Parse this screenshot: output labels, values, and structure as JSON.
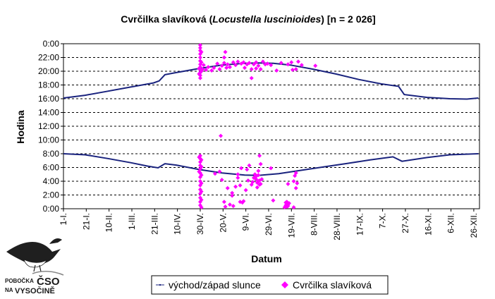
{
  "chart_data": {
    "type": "scatter",
    "title_prefix": "Cvrčilka slavíková (",
    "title_species": "Locustella luscinioides",
    "title_suffix": ") [n = 2 026]",
    "xlabel": "Datum",
    "ylabel": "Hodina",
    "ylim": [
      0,
      24
    ],
    "y_ticks": [
      "0:00",
      "2:00",
      "4:00",
      "6:00",
      "8:00",
      "10:00",
      "12:00",
      "14:00",
      "16:00",
      "18:00",
      "20:00",
      "22:00",
      "0:00"
    ],
    "x_ticks": [
      "1-I.",
      "21-I.",
      "10-II.",
      "1-III.",
      "21-III.",
      "10-IV.",
      "30-IV.",
      "20-V.",
      "9-VI.",
      "29-VI.",
      "19-VII.",
      "8-VIII.",
      "28-VIII.",
      "17-IX.",
      "7-X.",
      "27-X.",
      "16-XI.",
      "6-XII.",
      "26-XII."
    ],
    "grid": true,
    "legend_position": "bottom",
    "series": [
      {
        "name": "východ/západ slunce",
        "color": "#1a237e",
        "sunrise": [
          [
            1,
            8.0
          ],
          [
            20,
            7.85
          ],
          [
            40,
            7.3
          ],
          [
            60,
            6.7
          ],
          [
            75,
            6.2
          ],
          [
            84,
            5.95
          ],
          [
            90,
            6.55
          ],
          [
            100,
            6.35
          ],
          [
            120,
            5.7
          ],
          [
            140,
            5.2
          ],
          [
            160,
            4.9
          ],
          [
            172,
            4.85
          ],
          [
            190,
            5.1
          ],
          [
            210,
            5.6
          ],
          [
            230,
            6.1
          ],
          [
            250,
            6.6
          ],
          [
            270,
            7.1
          ],
          [
            290,
            7.55
          ],
          [
            298,
            6.9
          ],
          [
            320,
            7.45
          ],
          [
            340,
            7.85
          ],
          [
            365,
            8.0
          ]
        ],
        "sunset": [
          [
            1,
            16.1
          ],
          [
            20,
            16.5
          ],
          [
            40,
            17.1
          ],
          [
            60,
            17.7
          ],
          [
            80,
            18.3
          ],
          [
            85,
            18.6
          ],
          [
            90,
            19.5
          ],
          [
            100,
            19.8
          ],
          [
            120,
            20.4
          ],
          [
            140,
            20.9
          ],
          [
            160,
            21.15
          ],
          [
            172,
            21.2
          ],
          [
            185,
            21.15
          ],
          [
            200,
            20.9
          ],
          [
            220,
            20.3
          ],
          [
            240,
            19.6
          ],
          [
            260,
            18.8
          ],
          [
            280,
            18.15
          ],
          [
            295,
            17.8
          ],
          [
            300,
            16.6
          ],
          [
            320,
            16.2
          ],
          [
            340,
            16.0
          ],
          [
            355,
            15.95
          ],
          [
            365,
            16.1
          ]
        ]
      },
      {
        "name": "Cvrčilka slavíková",
        "color": "#ff00ff",
        "points": [
          [
            121,
            0.5
          ],
          [
            121,
            1.0
          ],
          [
            121,
            1.6
          ],
          [
            121,
            2.2
          ],
          [
            121,
            2.8
          ],
          [
            121,
            3.4
          ],
          [
            121,
            4.0
          ],
          [
            121,
            4.6
          ],
          [
            121,
            5.2
          ],
          [
            121,
            5.8
          ],
          [
            121,
            6.3
          ],
          [
            121,
            6.8
          ],
          [
            121,
            7.3
          ],
          [
            121,
            7.7
          ],
          [
            122,
            0.2
          ],
          [
            122,
            1.3
          ],
          [
            122,
            2.5
          ],
          [
            122,
            3.7
          ],
          [
            122,
            4.9
          ],
          [
            122,
            6.1
          ],
          [
            122,
            7.1
          ],
          [
            120,
            5.4
          ],
          [
            120,
            7.5
          ],
          [
            121,
            19.0
          ],
          [
            121,
            19.4
          ],
          [
            121,
            19.8
          ],
          [
            121,
            20.2
          ],
          [
            121,
            20.6
          ],
          [
            121,
            21.0
          ],
          [
            121,
            21.5
          ],
          [
            121,
            22.0
          ],
          [
            121,
            22.5
          ],
          [
            121,
            23.0
          ],
          [
            121,
            23.4
          ],
          [
            121,
            23.8
          ],
          [
            122,
            20.0
          ],
          [
            122,
            21.3
          ],
          [
            122,
            22.8
          ],
          [
            120,
            20.4
          ],
          [
            120,
            19.6
          ],
          [
            123,
            20.3
          ],
          [
            124,
            20.9
          ],
          [
            126,
            20.2
          ],
          [
            128,
            20.6
          ],
          [
            131,
            20.1
          ],
          [
            133,
            20.5
          ],
          [
            136,
            21.1
          ],
          [
            138,
            20.3
          ],
          [
            140,
            20.8
          ],
          [
            142,
            21.2
          ],
          [
            142,
            22.0
          ],
          [
            143,
            22.8
          ],
          [
            144,
            20.5
          ],
          [
            145,
            21.0
          ],
          [
            147,
            20.6
          ],
          [
            150,
            21.3
          ],
          [
            152,
            20.9
          ],
          [
            154,
            21.4
          ],
          [
            157,
            21.1
          ],
          [
            159,
            21.3
          ],
          [
            160,
            20.5
          ],
          [
            162,
            21.0
          ],
          [
            164,
            21.2
          ],
          [
            166,
            19.0
          ],
          [
            166,
            20.3
          ],
          [
            168,
            21.0
          ],
          [
            170,
            21.3
          ],
          [
            170,
            20.4
          ],
          [
            172,
            20.8
          ],
          [
            174,
            20.3
          ],
          [
            176,
            21.4
          ],
          [
            178,
            21.0
          ],
          [
            180,
            21.1
          ],
          [
            183,
            20.9
          ],
          [
            188,
            20.1
          ],
          [
            192,
            21.2
          ],
          [
            198,
            21.0
          ],
          [
            201,
            21.3
          ],
          [
            202,
            20.2
          ],
          [
            205,
            20.3
          ],
          [
            207,
            21.4
          ],
          [
            210,
            20.9
          ],
          [
            222,
            20.8
          ],
          [
            139,
            10.6
          ],
          [
            134,
            5.1
          ],
          [
            138,
            5.4
          ],
          [
            140,
            4.2
          ],
          [
            142,
            1.0
          ],
          [
            143,
            0.3
          ],
          [
            145,
            3.0
          ],
          [
            147,
            0.6
          ],
          [
            149,
            2.3
          ],
          [
            149,
            1.9
          ],
          [
            150,
            0.4
          ],
          [
            152,
            3.2
          ],
          [
            154,
            5.0
          ],
          [
            154,
            4.5
          ],
          [
            156,
            3.4
          ],
          [
            156,
            1.0
          ],
          [
            157,
            5.9
          ],
          [
            158,
            0.9
          ],
          [
            159,
            1.1
          ],
          [
            161,
            2.7
          ],
          [
            162,
            5.7
          ],
          [
            163,
            4.1
          ],
          [
            164,
            6.3
          ],
          [
            166,
            3.5
          ],
          [
            167,
            3.9
          ],
          [
            168,
            4.5
          ],
          [
            169,
            5.0
          ],
          [
            170,
            4.7
          ],
          [
            170,
            4.3
          ],
          [
            171,
            3.8
          ],
          [
            171,
            3.1
          ],
          [
            172,
            4.0
          ],
          [
            172,
            4.9
          ],
          [
            172,
            5.5
          ],
          [
            173,
            3.5
          ],
          [
            173,
            4.1
          ],
          [
            173,
            7.7
          ],
          [
            174,
            6.5
          ],
          [
            174,
            3.6
          ],
          [
            175,
            4.3
          ],
          [
            183,
            5.9
          ],
          [
            185,
            1.2
          ],
          [
            195,
            0.2
          ],
          [
            196,
            0.5
          ],
          [
            196,
            0.9
          ],
          [
            197,
            0.3
          ],
          [
            197,
            1.0
          ],
          [
            198,
            0.6
          ],
          [
            198,
            0.4
          ],
          [
            199,
            0.8
          ],
          [
            198,
            3.6
          ],
          [
            203,
            4.0
          ],
          [
            203,
            0.2
          ],
          [
            204,
            4.8
          ],
          [
            205,
            5.2
          ],
          [
            206,
            3.7
          ],
          [
            205,
            3.0
          ]
        ]
      }
    ]
  },
  "logo": {
    "line1": "POBOČKA",
    "brand": "ČSO",
    "line2": "NA",
    "region": "VYSOČINĚ"
  }
}
